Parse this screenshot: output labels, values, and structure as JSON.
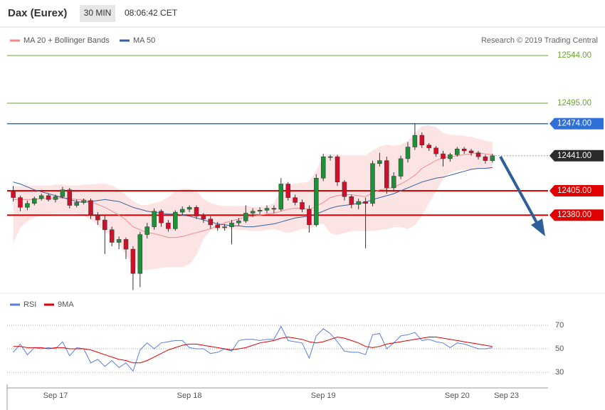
{
  "header": {
    "title": "Dax (Eurex)",
    "interval": "30 MIN",
    "time": "08:06:42 CET"
  },
  "chart_data": [
    {
      "type": "candlestick",
      "credit": "Research © 2019 Trading Central",
      "up_color": "#1f8f3a",
      "down_color": "#d0102a",
      "ylim": [
        12301,
        12553
      ],
      "open": [
        12404,
        12398,
        12388,
        12392,
        12397,
        12400,
        12396,
        12399,
        12406,
        12390,
        12393,
        12395,
        12380,
        12375,
        12365,
        12352,
        12355,
        12345,
        12320,
        12360,
        12368,
        12384,
        12372,
        12366,
        12383,
        12386,
        12388,
        12379,
        12376,
        12370,
        12367,
        12368,
        12372,
        12374,
        12382,
        12384,
        12385,
        12387,
        12386,
        12412,
        12398,
        12393,
        12386,
        12370,
        12418,
        12440,
        12440,
        12414,
        12399,
        12391,
        12394,
        12392,
        12433,
        12436,
        12408,
        12420,
        12438,
        12450,
        12462,
        12452,
        12449,
        12443,
        12438,
        12442,
        12448,
        12446,
        12444,
        12440,
        12436,
        null,
        null
      ],
      "high": [
        12410,
        12400,
        12395,
        12399,
        12402,
        12402,
        12401,
        12409,
        12408,
        12396,
        12397,
        12397,
        12383,
        12380,
        12368,
        12358,
        12357,
        12348,
        12363,
        12372,
        12387,
        12386,
        12375,
        12385,
        12389,
        12390,
        12390,
        12382,
        12379,
        12373,
        12371,
        12375,
        12377,
        12390,
        12387,
        12388,
        12390,
        12390,
        12418,
        12414,
        12401,
        12396,
        12390,
        12422,
        12443,
        12442,
        12442,
        12416,
        12401,
        12397,
        12398,
        12436,
        12444,
        12440,
        12424,
        12441,
        12455,
        12474,
        12465,
        12454,
        12451,
        12446,
        12444,
        12450,
        12450,
        12448,
        12446,
        12442,
        12443,
        null,
        null
      ],
      "low": [
        12394,
        12384,
        12385,
        12390,
        12395,
        12394,
        12393,
        12397,
        12387,
        12388,
        12391,
        12376,
        12370,
        12340,
        12348,
        12345,
        12335,
        12303,
        12306,
        12356,
        12365,
        12368,
        12363,
        12364,
        12380,
        12383,
        12376,
        12372,
        12366,
        12364,
        12364,
        12350,
        12369,
        12372,
        12378,
        12381,
        12382,
        12382,
        12384,
        12395,
        12390,
        12383,
        12362,
        12368,
        12415,
        12436,
        12410,
        12395,
        12387,
        12386,
        12346,
        12389,
        12430,
        12402,
        12404,
        12417,
        12434,
        12447,
        12449,
        12446,
        12440,
        12430,
        12435,
        12440,
        12443,
        12441,
        12437,
        12433,
        12434,
        null,
        null
      ],
      "close": [
        12398,
        12388,
        12392,
        12397,
        12400,
        12396,
        12399,
        12406,
        12390,
        12393,
        12395,
        12380,
        12375,
        12365,
        12352,
        12355,
        12345,
        12320,
        12360,
        12368,
        12384,
        12372,
        12366,
        12383,
        12386,
        12388,
        12379,
        12376,
        12370,
        12367,
        12368,
        12372,
        12374,
        12382,
        12384,
        12385,
        12387,
        12386,
        12412,
        12398,
        12393,
        12386,
        12370,
        12418,
        12440,
        12440,
        12414,
        12399,
        12391,
        12394,
        12392,
        12433,
        12436,
        12408,
        12420,
        12438,
        12450,
        12462,
        12452,
        12449,
        12443,
        12438,
        12442,
        12448,
        12446,
        12444,
        12440,
        12436,
        12441,
        null,
        null
      ],
      "series": [
        {
          "name": "MA 20 + Bollinger Bands",
          "color": "#f28b8b",
          "band_color": "#fde4e4",
          "values": [
            12396,
            12396,
            12396,
            12396,
            12397,
            12397,
            12397,
            12398,
            12397,
            12396,
            12396,
            12394,
            12391,
            12388,
            12384,
            12380,
            12375,
            12368,
            12365,
            12362,
            12361,
            12359,
            12357,
            12357,
            12358,
            12360,
            12362,
            12364,
            12366,
            12369,
            12372,
            12374,
            12376,
            12378,
            12379,
            12380,
            12381,
            12382,
            12384,
            12386,
            12387,
            12387,
            12386,
            12389,
            12393,
            12398,
            12400,
            12401,
            12401,
            12400,
            12399,
            12403,
            12406,
            12407,
            12409,
            12412,
            12416,
            12421,
            12428,
            12432,
            12436,
            12439,
            12440,
            12441,
            12442,
            12443,
            12444,
            12443,
            12442,
            null,
            null
          ],
          "upper": [
            12409,
            12409,
            12410,
            12410,
            12410,
            12410,
            12411,
            12411,
            12410,
            12410,
            12411,
            12411,
            12412,
            12412,
            12410,
            12406,
            12400,
            12394,
            12390,
            12390,
            12392,
            12394,
            12398,
            12404,
            12407,
            12407,
            12404,
            12396,
            12392,
            12390,
            12389,
            12389,
            12389,
            12389,
            12388,
            12388,
            12389,
            12392,
            12405,
            12410,
            12412,
            12413,
            12414,
            12425,
            12440,
            12442,
            12442,
            12441,
            12441,
            12441,
            12441,
            12446,
            12450,
            12452,
            12451,
            12452,
            12456,
            12464,
            12471,
            12472,
            12470,
            12464,
            12462,
            12462,
            12461,
            12460,
            12458,
            12456,
            12455,
            null,
            null
          ],
          "lower": [
            12352,
            12368,
            12374,
            12378,
            12380,
            12381,
            12382,
            12382,
            12382,
            12382,
            12380,
            12376,
            12370,
            12364,
            12358,
            12350,
            12340,
            12328,
            12324,
            12324,
            12325,
            12326,
            12327,
            12327,
            12327,
            12330,
            12340,
            12356,
            12365,
            12366,
            12366,
            12366,
            12365,
            12365,
            12364,
            12364,
            12365,
            12366,
            12364,
            12362,
            12364,
            12366,
            12366,
            12370,
            12372,
            12362,
            12360,
            12362,
            12364,
            12364,
            12364,
            12364,
            12365,
            12366,
            12368,
            12368,
            12366,
            12370,
            12380,
            12393,
            12405,
            12418,
            12424,
            12426,
            12427,
            12427,
            12428,
            12428,
            12427,
            null,
            null
          ]
        },
        {
          "name": "MA 50",
          "color": "#3560a0",
          "values": [
            12414,
            12412,
            12409,
            12406,
            12404,
            12402,
            12400,
            12398,
            12396,
            12394,
            12393,
            12394,
            12395,
            12396,
            12395,
            12394,
            12391,
            12388,
            12386,
            12384,
            12383,
            12382,
            12381,
            12381,
            12380,
            12379,
            12377,
            12375,
            12373,
            12371,
            12370,
            12369,
            12369,
            12368,
            12368,
            12369,
            12370,
            12371,
            12373,
            12375,
            12377,
            12378,
            12379,
            12381,
            12384,
            12387,
            12389,
            12390,
            12391,
            12392,
            12393,
            12396,
            12398,
            12400,
            12402,
            12405,
            12408,
            12411,
            12414,
            12416,
            12418,
            12419,
            12421,
            12423,
            12425,
            12427,
            12428,
            12428,
            12429,
            null,
            null
          ]
        }
      ],
      "levels": [
        {
          "value": 12544,
          "label": "12544.00",
          "color": "#6aa82e",
          "box": false,
          "line": "solid"
        },
        {
          "value": 12495,
          "label": "12495.00",
          "color": "#6aa82e",
          "box": false,
          "line": "solid"
        },
        {
          "value": 12474,
          "label": "12474.00",
          "color": "#2f6fd8",
          "box": true,
          "line": "solid"
        },
        {
          "value": 12441,
          "label": "12441.00",
          "color": "#2b2b2b",
          "box": true,
          "line": "dotted"
        },
        {
          "value": 12405,
          "label": "12405.00",
          "color": "#e00000",
          "box": true,
          "line": "solid"
        },
        {
          "value": 12380,
          "label": "12380.00",
          "color": "#e00000",
          "box": true,
          "line": "solid"
        }
      ]
    },
    {
      "type": "line",
      "ylim": [
        20,
        80
      ],
      "yticks": [
        70,
        50,
        30
      ],
      "categories": [
        null,
        null,
        null,
        null,
        null,
        null,
        "Sep 17",
        null,
        null,
        null,
        null,
        null,
        null,
        null,
        null,
        null,
        null,
        null,
        null,
        null,
        null,
        null,
        null,
        null,
        null,
        "Sep 18",
        null,
        null,
        null,
        null,
        null,
        null,
        null,
        null,
        null,
        null,
        null,
        null,
        null,
        null,
        null,
        null,
        null,
        null,
        "Sep 19",
        null,
        null,
        null,
        null,
        null,
        null,
        null,
        null,
        null,
        null,
        null,
        null,
        null,
        null,
        null,
        null,
        null,
        null,
        "Sep 20",
        null,
        null,
        null,
        null,
        null,
        null,
        "Sep 23"
      ],
      "series": [
        {
          "name": "RSI",
          "color": "#5b7fe0",
          "values": [
            47,
            54,
            45,
            51,
            50,
            51,
            50,
            56,
            44,
            51,
            50,
            38,
            41,
            35,
            40,
            34,
            38,
            31,
            49,
            55,
            50,
            55,
            56,
            57,
            57,
            51,
            50,
            50,
            46,
            47,
            50,
            48,
            57,
            58,
            58,
            57,
            58,
            58,
            69,
            57,
            56,
            55,
            42,
            61,
            67,
            63,
            56,
            48,
            47,
            47,
            45,
            62,
            63,
            50,
            55,
            61,
            62,
            64,
            57,
            58,
            56,
            55,
            51,
            55,
            54,
            52,
            50,
            50,
            51,
            null,
            null
          ]
        },
        {
          "name": "9MA",
          "color": "#e00000",
          "values": [
            52,
            52,
            51,
            51,
            51,
            50,
            51,
            51,
            50,
            50,
            50,
            49,
            47,
            45,
            43,
            41,
            40,
            38,
            38,
            40,
            43,
            46,
            49,
            51,
            53,
            54,
            54,
            53,
            52,
            51,
            50,
            49,
            50,
            51,
            53,
            55,
            56,
            57,
            59,
            60,
            59,
            58,
            56,
            55,
            56,
            58,
            60,
            59,
            57,
            55,
            52,
            51,
            52,
            54,
            55,
            56,
            57,
            58,
            59,
            60,
            60,
            59,
            58,
            57,
            56,
            55,
            54,
            53,
            52,
            null,
            null
          ]
        }
      ]
    }
  ]
}
